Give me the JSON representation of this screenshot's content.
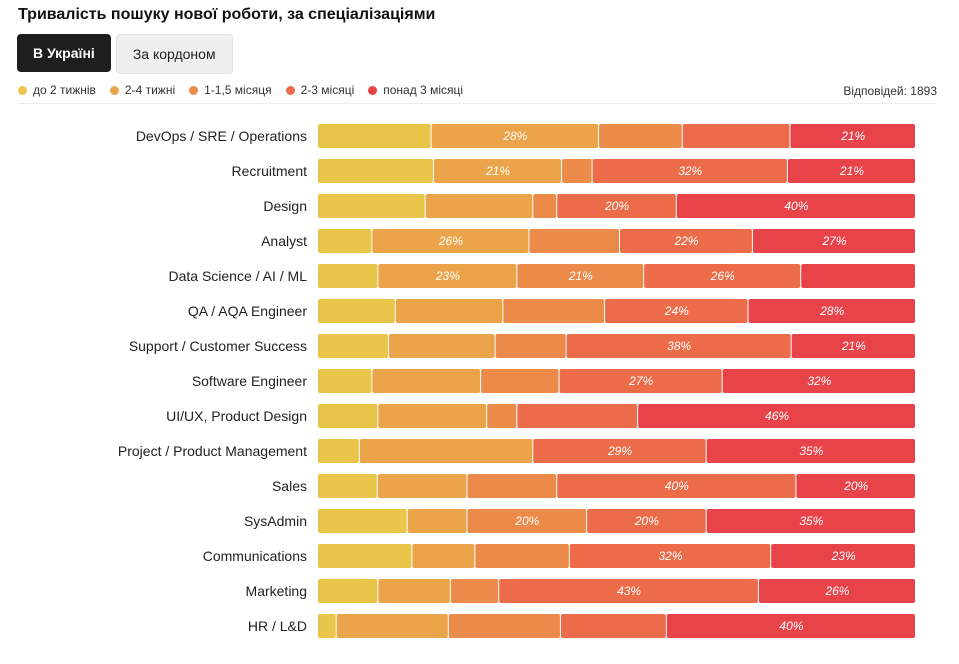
{
  "title": "Тривалість пошуку нової роботи, за спеціалізаціями",
  "tabs": [
    {
      "label": "В Україні",
      "active": true
    },
    {
      "label": "За кордоном",
      "active": false
    }
  ],
  "responses": "Відповідей: 1893",
  "colors": [
    "#e9c54a",
    "#eba449",
    "#ec8a4a",
    "#ec6c4a",
    "#e84349"
  ],
  "chart_data": {
    "type": "bar",
    "orientation": "horizontal",
    "stacked": true,
    "unit": "%",
    "categories": [
      "DevOps / SRE / Operations",
      "Recruitment",
      "Design",
      "Analyst",
      "Data Science / AI / ML",
      "QA / AQA Engineer",
      "Support / Customer Success",
      "Software Engineer",
      "UI/UX, Product Design",
      "Project / Product Management",
      "Sales",
      "SysAdmin",
      "Communications",
      "Marketing",
      "HR / L&D"
    ],
    "series": [
      {
        "name": "до 2 тижнів",
        "values": [
          19,
          19,
          18,
          9,
          10,
          13,
          12,
          9,
          10,
          7,
          10,
          15,
          15,
          10,
          3
        ]
      },
      {
        "name": "2-4 тижні",
        "values": [
          28,
          21,
          18,
          26,
          23,
          18,
          18,
          18,
          18,
          29,
          15,
          10,
          10,
          12,
          18
        ]
      },
      {
        "name": "1-1,5 місяця",
        "values": [
          14,
          5,
          4,
          15,
          21,
          17,
          12,
          13,
          5,
          0,
          15,
          20,
          15,
          8,
          18
        ]
      },
      {
        "name": "2-3 місяці",
        "values": [
          18,
          32,
          20,
          22,
          26,
          24,
          38,
          27,
          20,
          29,
          40,
          20,
          32,
          43,
          17
        ]
      },
      {
        "name": "понад 3 місяці",
        "values": [
          21,
          21,
          40,
          27,
          19,
          28,
          21,
          32,
          46,
          35,
          20,
          35,
          23,
          26,
          40
        ]
      }
    ],
    "labels": [
      [
        null,
        "28%",
        null,
        null,
        "21%"
      ],
      [
        null,
        "21%",
        null,
        "32%",
        "21%"
      ],
      [
        null,
        null,
        null,
        "20%",
        "40%"
      ],
      [
        null,
        "26%",
        null,
        "22%",
        "27%"
      ],
      [
        null,
        "23%",
        "21%",
        "26%",
        null
      ],
      [
        null,
        null,
        null,
        "24%",
        "28%"
      ],
      [
        null,
        null,
        null,
        "38%",
        "21%"
      ],
      [
        null,
        null,
        null,
        "27%",
        "32%"
      ],
      [
        null,
        null,
        null,
        null,
        "46%"
      ],
      [
        null,
        null,
        null,
        "29%",
        "35%"
      ],
      [
        null,
        null,
        null,
        "40%",
        "20%"
      ],
      [
        null,
        null,
        "20%",
        "20%",
        "35%"
      ],
      [
        null,
        null,
        null,
        "32%",
        "23%"
      ],
      [
        null,
        null,
        null,
        "43%",
        "26%"
      ],
      [
        null,
        null,
        null,
        null,
        "40%"
      ]
    ],
    "legend_position": "top-left",
    "grid": false
  }
}
